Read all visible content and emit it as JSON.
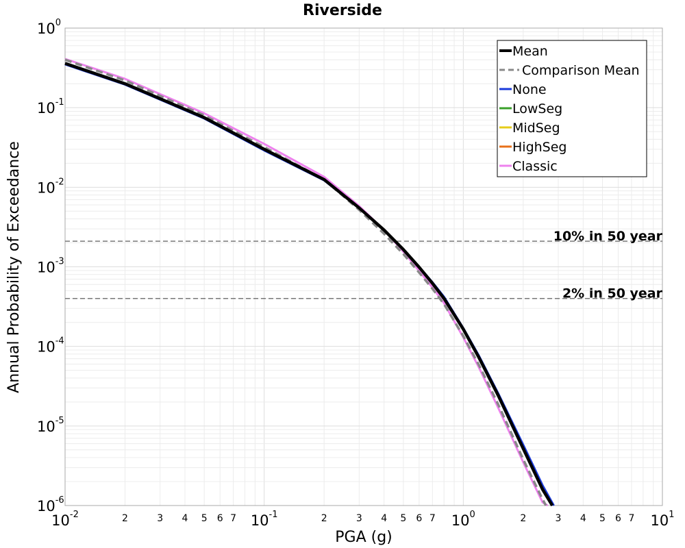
{
  "chart_data": {
    "type": "line",
    "title": "Riverside",
    "xlabel": "PGA (g)",
    "ylabel": "Annual Probability of Exceedance",
    "xscale": "log",
    "yscale": "log",
    "xlim": [
      0.01,
      10
    ],
    "ylim": [
      1e-06,
      1
    ],
    "grid": true,
    "legend_position": "top-right",
    "x_major_ticks": [
      {
        "value": 0.01,
        "base": "10",
        "exp": "-2"
      },
      {
        "value": 0.1,
        "base": "10",
        "exp": "-1"
      },
      {
        "value": 1,
        "base": "10",
        "exp": "0"
      },
      {
        "value": 10,
        "base": "10",
        "exp": "1"
      }
    ],
    "x_minor_labels": [
      "2",
      "3",
      "4",
      "5",
      "6",
      "7"
    ],
    "y_major_ticks": [
      {
        "value": 1e-06,
        "base": "10",
        "exp": "-6"
      },
      {
        "value": 1e-05,
        "base": "10",
        "exp": "-5"
      },
      {
        "value": 0.0001,
        "base": "10",
        "exp": "-4"
      },
      {
        "value": 0.001,
        "base": "10",
        "exp": "-3"
      },
      {
        "value": 0.01,
        "base": "10",
        "exp": "-2"
      },
      {
        "value": 0.1,
        "base": "10",
        "exp": "-1"
      },
      {
        "value": 1,
        "base": "10",
        "exp": "0"
      }
    ],
    "reference_lines": [
      {
        "label": "10% in 50 year",
        "y": 0.0021,
        "color": "#777777"
      },
      {
        "label": "2% in 50 year",
        "y": 0.0004,
        "color": "#777777"
      }
    ],
    "series": [
      {
        "name": "Mean",
        "color": "#000000",
        "style": "solid",
        "width": 4.5,
        "x": [
          0.01,
          0.02,
          0.05,
          0.1,
          0.2,
          0.3,
          0.4,
          0.5,
          0.6,
          0.7,
          0.8,
          1.0,
          1.2,
          1.5,
          2.0,
          2.5,
          2.8
        ],
        "y": [
          0.36,
          0.2,
          0.075,
          0.03,
          0.0125,
          0.0055,
          0.0029,
          0.00165,
          0.00099,
          0.00062,
          0.0004,
          0.000165,
          7.2e-05,
          2.4e-05,
          5.2e-06,
          1.6e-06,
          1e-06
        ]
      },
      {
        "name": "Comparison Mean",
        "color": "#888888",
        "style": "dashed",
        "width": 3.5,
        "x": [
          0.01,
          0.02,
          0.05,
          0.1,
          0.2,
          0.3,
          0.4,
          0.5,
          0.6,
          0.7,
          0.8,
          1.0,
          1.2,
          1.5,
          2.0,
          2.5,
          2.6
        ],
        "y": [
          0.4,
          0.22,
          0.08,
          0.032,
          0.0125,
          0.0052,
          0.0026,
          0.00145,
          0.00085,
          0.00053,
          0.00034,
          0.000135,
          5.8e-05,
          1.85e-05,
          3.8e-06,
          1.2e-06,
          1e-06
        ]
      },
      {
        "name": "None",
        "color": "#1a3adb",
        "style": "solid",
        "width": 3,
        "x": [
          0.01,
          0.02,
          0.05,
          0.1,
          0.2,
          0.3,
          0.4,
          0.5,
          0.6,
          0.7,
          0.8,
          1.0,
          1.2,
          1.5,
          2.0,
          2.5,
          2.85
        ],
        "y": [
          0.35,
          0.195,
          0.073,
          0.029,
          0.0122,
          0.0055,
          0.0029,
          0.00167,
          0.001,
          0.00064,
          0.00042,
          0.00017,
          7.6e-05,
          2.55e-05,
          5.8e-06,
          1.8e-06,
          1e-06
        ]
      },
      {
        "name": "LowSeg",
        "color": "#3aa02a",
        "style": "solid",
        "width": 2.5,
        "x": [],
        "y": []
      },
      {
        "name": "MidSeg",
        "color": "#e6cc1a",
        "style": "solid",
        "width": 2.5,
        "x": [],
        "y": []
      },
      {
        "name": "HighSeg",
        "color": "#e8701a",
        "style": "solid",
        "width": 2.5,
        "x": [],
        "y": []
      },
      {
        "name": "Classic",
        "color": "#ee82ee",
        "style": "solid",
        "width": 3,
        "x": [
          0.01,
          0.02,
          0.05,
          0.1,
          0.2,
          0.3,
          0.4,
          0.5,
          0.6,
          0.7,
          0.8,
          1.0,
          1.2,
          1.5,
          2.0,
          2.5,
          2.65
        ],
        "y": [
          0.41,
          0.23,
          0.085,
          0.035,
          0.0135,
          0.0058,
          0.0029,
          0.00155,
          0.00089,
          0.00055,
          0.00035,
          0.00013,
          5.4e-05,
          1.68e-05,
          3.5e-06,
          1.1e-06,
          1e-06
        ]
      }
    ]
  }
}
